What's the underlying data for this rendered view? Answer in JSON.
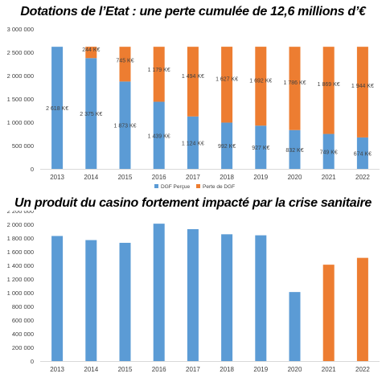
{
  "chart_data": [
    {
      "type": "bar",
      "stacked": true,
      "title": "Dotations de l’Etat : une perte cumulée de 12,6 millions d’€",
      "categories": [
        "2013",
        "2014",
        "2015",
        "2016",
        "2017",
        "2018",
        "2019",
        "2020",
        "2021",
        "2022"
      ],
      "series": [
        {
          "name": "DGF Perçue",
          "color": "#5b9bd5",
          "values": [
            2618000,
            2375000,
            1873000,
            1439000,
            1124000,
            992000,
            927000,
            832000,
            749000,
            674000
          ],
          "labels": [
            "2 618 K€",
            "2 375 K€",
            "1 873 K€",
            "1 439 K€",
            "1 124 K€",
            "992 K€",
            "927 K€",
            "832 K€",
            "749 K€",
            "674 K€"
          ]
        },
        {
          "name": "Perte de DGF",
          "color": "#ed7d31",
          "values": [
            0,
            244000,
            745000,
            1179000,
            1494000,
            1627000,
            1692000,
            1786000,
            1869000,
            1944000
          ],
          "labels": [
            "",
            "244 K€",
            "745 K€",
            "1 179 K€",
            "1 494 K€",
            "1 627 K€",
            "1 692 K€",
            "1 786 K€",
            "1 869 K€",
            "1 944 K€"
          ]
        }
      ],
      "yticks": [
        0,
        500000,
        1000000,
        1500000,
        2000000,
        2500000,
        3000000
      ],
      "ytick_labels": [
        "0",
        "500 000",
        "1 000 000",
        "1 500 000",
        "2 000 000",
        "2 500 000",
        "3 000 000"
      ],
      "ylim": [
        0,
        3000000
      ],
      "legend": "bottom",
      "grid": false
    },
    {
      "type": "bar",
      "title": "Un produit du casino fortement impacté par la crise sanitaire",
      "categories": [
        "2013",
        "2014",
        "2015",
        "2016",
        "2017",
        "2018",
        "2019",
        "2020",
        "2021",
        "2022"
      ],
      "values": [
        1830000,
        1770000,
        1730000,
        2010000,
        1930000,
        1855000,
        1840000,
        1010000,
        1410000,
        1510000
      ],
      "colors": [
        "#5b9bd5",
        "#5b9bd5",
        "#5b9bd5",
        "#5b9bd5",
        "#5b9bd5",
        "#5b9bd5",
        "#5b9bd5",
        "#5b9bd5",
        "#ed7d31",
        "#ed7d31"
      ],
      "yticks": [
        0,
        200000,
        400000,
        600000,
        800000,
        1000000,
        1200000,
        1400000,
        1600000,
        1800000,
        2000000,
        2200000
      ],
      "ytick_labels": [
        "0",
        "200 000",
        "400 000",
        "600 000",
        "800 000",
        "1 000 000",
        "1 200 000",
        "1 400 000",
        "1 600 000",
        "1 800 000",
        "2 000 000",
        "2 200 000"
      ],
      "ylim": [
        0,
        2200000
      ],
      "grid": false
    }
  ]
}
